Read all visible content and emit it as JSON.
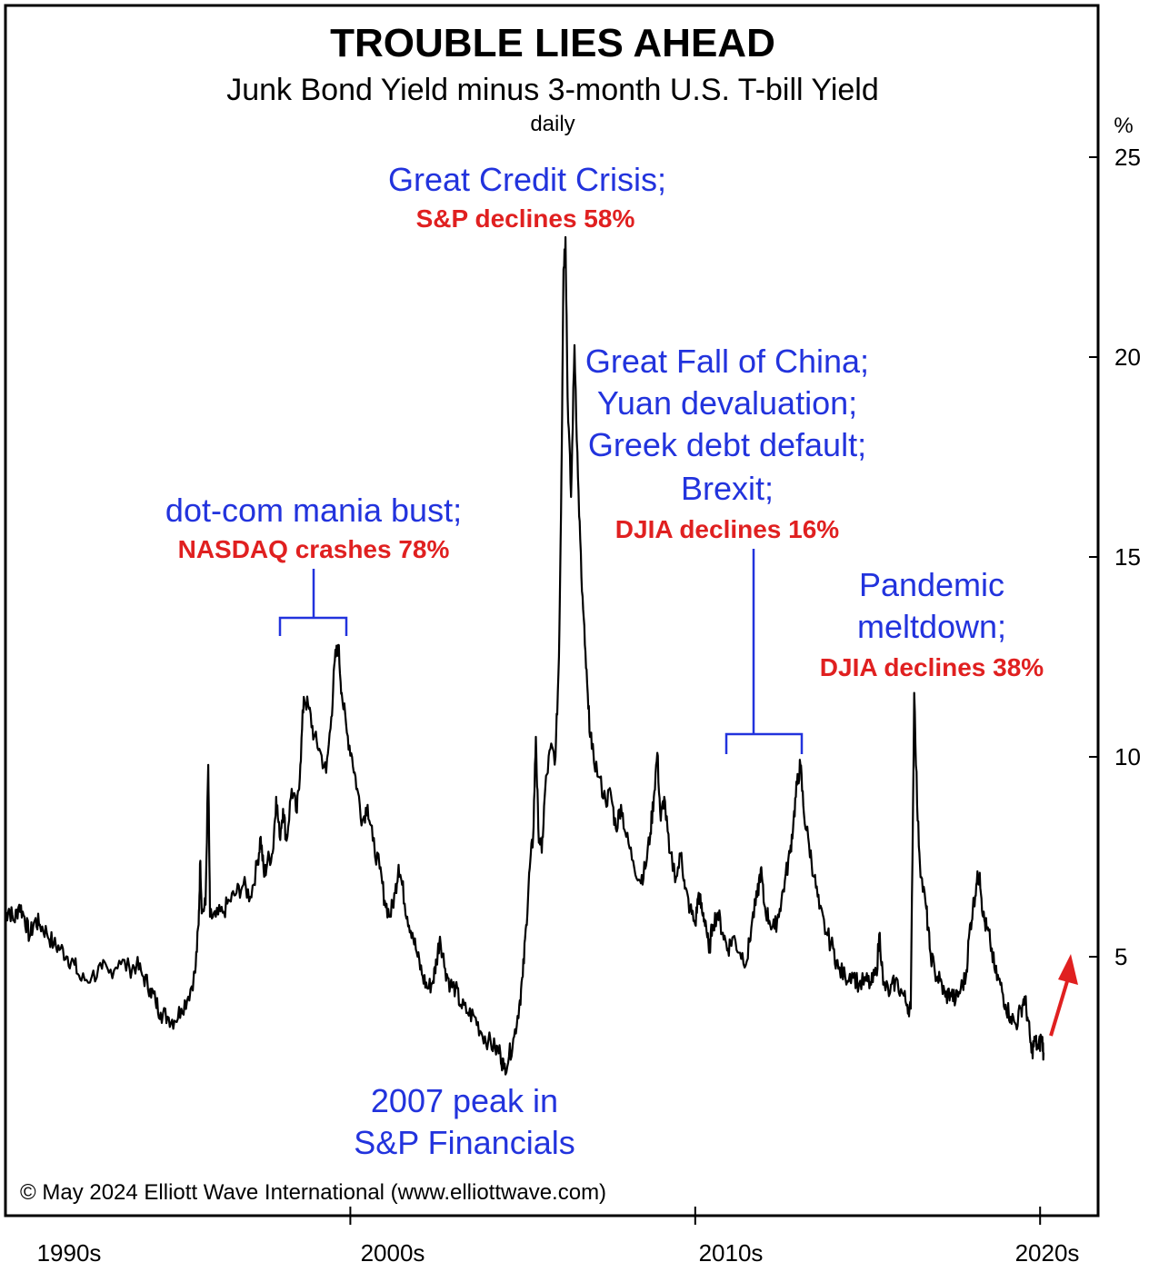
{
  "chart_data": {
    "type": "line",
    "title": "TROUBLE LIES AHEAD",
    "subtitle": "Junk Bond Yield minus 3-month U.S. T-bill Yield",
    "frequency": "daily",
    "ylabel": "%",
    "ylim": [
      0,
      27
    ],
    "yticks": [
      5,
      10,
      15,
      20,
      25
    ],
    "xlim": [
      1990,
      2024.6
    ],
    "xticks": [
      {
        "value": 1990,
        "label": "1990s"
      },
      {
        "value": 2000,
        "label": "2000s"
      },
      {
        "value": 2010,
        "label": "2010s"
      },
      {
        "value": 2020,
        "label": "2020s"
      }
    ],
    "grid": false,
    "series": [
      {
        "color": "#000000",
        "points": [
          [
            1990.0,
            6.0
          ],
          [
            1990.1,
            6.2
          ],
          [
            1990.25,
            5.9
          ],
          [
            1990.4,
            6.3
          ],
          [
            1990.55,
            6.0
          ],
          [
            1990.7,
            5.5
          ],
          [
            1990.85,
            5.9
          ],
          [
            1991.0,
            5.8
          ],
          [
            1991.2,
            5.6
          ],
          [
            1991.4,
            5.3
          ],
          [
            1991.6,
            5.2
          ],
          [
            1991.8,
            5.0
          ],
          [
            1992.0,
            4.8
          ],
          [
            1992.2,
            4.4
          ],
          [
            1992.5,
            4.5
          ],
          [
            1992.8,
            4.7
          ],
          [
            1993.0,
            4.6
          ],
          [
            1993.3,
            4.9
          ],
          [
            1993.6,
            4.7
          ],
          [
            1993.8,
            4.8
          ],
          [
            1994.0,
            4.5
          ],
          [
            1994.2,
            4.2
          ],
          [
            1994.35,
            3.9
          ],
          [
            1994.5,
            3.6
          ],
          [
            1994.7,
            3.5
          ],
          [
            1994.9,
            3.4
          ],
          [
            1995.1,
            3.7
          ],
          [
            1995.3,
            4.0
          ],
          [
            1995.5,
            4.6
          ],
          [
            1995.6,
            5.8
          ],
          [
            1995.65,
            7.4
          ],
          [
            1995.7,
            6.1
          ],
          [
            1995.8,
            6.3
          ],
          [
            1995.88,
            9.8
          ],
          [
            1995.93,
            6.0
          ],
          [
            1996.1,
            6.0
          ],
          [
            1996.3,
            6.1
          ],
          [
            1996.5,
            6.4
          ],
          [
            1996.7,
            6.6
          ],
          [
            1996.9,
            6.8
          ],
          [
            1997.1,
            6.5
          ],
          [
            1997.3,
            7.3
          ],
          [
            1997.4,
            8.0
          ],
          [
            1997.5,
            7.0
          ],
          [
            1997.6,
            7.4
          ],
          [
            1997.75,
            7.6
          ],
          [
            1997.85,
            9.0
          ],
          [
            1997.95,
            8.0
          ],
          [
            1998.05,
            8.7
          ],
          [
            1998.15,
            7.9
          ],
          [
            1998.3,
            9.2
          ],
          [
            1998.45,
            8.6
          ],
          [
            1998.55,
            9.8
          ],
          [
            1998.65,
            11.5
          ],
          [
            1998.8,
            11.2
          ],
          [
            1998.95,
            10.5
          ],
          [
            1999.1,
            10.2
          ],
          [
            1999.3,
            9.6
          ],
          [
            1999.45,
            11.0
          ],
          [
            1999.55,
            12.4
          ],
          [
            1999.65,
            12.8
          ],
          [
            1999.75,
            11.6
          ],
          [
            1999.9,
            10.6
          ],
          [
            2000.05,
            10.0
          ],
          [
            2000.2,
            9.2
          ],
          [
            2000.35,
            8.4
          ],
          [
            2000.5,
            8.8
          ],
          [
            2000.65,
            7.9
          ],
          [
            2000.85,
            7.2
          ],
          [
            2001.0,
            6.4
          ],
          [
            2001.15,
            6.0
          ],
          [
            2001.3,
            6.6
          ],
          [
            2001.4,
            7.3
          ],
          [
            2001.5,
            6.8
          ],
          [
            2001.65,
            6.0
          ],
          [
            2001.8,
            5.6
          ],
          [
            2001.95,
            5.0
          ],
          [
            2002.1,
            4.5
          ],
          [
            2002.25,
            4.2
          ],
          [
            2002.4,
            4.4
          ],
          [
            2002.5,
            4.9
          ],
          [
            2002.6,
            5.5
          ],
          [
            2002.75,
            4.7
          ],
          [
            2002.9,
            4.3
          ],
          [
            2003.05,
            4.2
          ],
          [
            2003.2,
            3.8
          ],
          [
            2003.4,
            3.6
          ],
          [
            2003.6,
            3.5
          ],
          [
            2003.8,
            3.1
          ],
          [
            2004.0,
            2.9
          ],
          [
            2004.2,
            2.7
          ],
          [
            2004.35,
            2.6
          ],
          [
            2004.45,
            2.2
          ],
          [
            2004.6,
            2.5
          ],
          [
            2004.75,
            3.0
          ],
          [
            2004.9,
            3.8
          ],
          [
            2005.0,
            4.5
          ],
          [
            2005.1,
            5.8
          ],
          [
            2005.2,
            7.2
          ],
          [
            2005.3,
            8.0
          ],
          [
            2005.38,
            10.5
          ],
          [
            2005.45,
            8.2
          ],
          [
            2005.55,
            7.6
          ],
          [
            2005.65,
            9.2
          ],
          [
            2005.8,
            10.2
          ],
          [
            2005.95,
            10.0
          ],
          [
            2006.05,
            12.5
          ],
          [
            2006.12,
            17.0
          ],
          [
            2006.18,
            22.2
          ],
          [
            2006.24,
            23.0
          ],
          [
            2006.3,
            19.0
          ],
          [
            2006.4,
            16.5
          ],
          [
            2006.5,
            20.3
          ],
          [
            2006.6,
            17.0
          ],
          [
            2006.7,
            14.5
          ],
          [
            2006.8,
            12.8
          ],
          [
            2006.9,
            11.2
          ],
          [
            2007.0,
            10.2
          ],
          [
            2007.2,
            9.5
          ],
          [
            2007.4,
            8.9
          ],
          [
            2007.55,
            9.1
          ],
          [
            2007.7,
            8.2
          ],
          [
            2007.85,
            8.8
          ],
          [
            2008.0,
            8.0
          ],
          [
            2008.2,
            7.4
          ],
          [
            2008.4,
            6.9
          ],
          [
            2008.55,
            7.2
          ],
          [
            2008.7,
            8.1
          ],
          [
            2008.8,
            9.0
          ],
          [
            2008.9,
            10.1
          ],
          [
            2009.0,
            8.4
          ],
          [
            2009.1,
            9.0
          ],
          [
            2009.25,
            7.6
          ],
          [
            2009.45,
            7.0
          ],
          [
            2009.6,
            7.6
          ],
          [
            2009.7,
            6.7
          ],
          [
            2009.85,
            6.2
          ],
          [
            2010.0,
            5.8
          ],
          [
            2010.1,
            6.6
          ],
          [
            2010.2,
            6.1
          ],
          [
            2010.3,
            5.9
          ],
          [
            2010.4,
            5.1
          ],
          [
            2010.5,
            5.8
          ],
          [
            2010.65,
            6.1
          ],
          [
            2010.8,
            5.6
          ],
          [
            2010.95,
            5.2
          ],
          [
            2011.1,
            5.5
          ],
          [
            2011.3,
            5.1
          ],
          [
            2011.5,
            4.9
          ],
          [
            2011.65,
            5.9
          ],
          [
            2011.8,
            6.5
          ],
          [
            2011.9,
            7.2
          ],
          [
            2012.0,
            6.3
          ],
          [
            2012.15,
            5.9
          ],
          [
            2012.3,
            5.7
          ],
          [
            2012.45,
            6.2
          ],
          [
            2012.6,
            6.9
          ],
          [
            2012.75,
            7.6
          ],
          [
            2012.85,
            8.4
          ],
          [
            2012.95,
            9.3
          ],
          [
            2013.05,
            9.8
          ],
          [
            2013.15,
            8.6
          ],
          [
            2013.3,
            7.8
          ],
          [
            2013.45,
            7.0
          ],
          [
            2013.6,
            6.2
          ],
          [
            2013.8,
            5.6
          ],
          [
            2014.0,
            5.2
          ],
          [
            2014.15,
            4.7
          ],
          [
            2014.35,
            4.5
          ],
          [
            2014.55,
            4.6
          ],
          [
            2014.75,
            4.3
          ],
          [
            2014.95,
            4.4
          ],
          [
            2015.1,
            4.3
          ],
          [
            2015.25,
            4.6
          ],
          [
            2015.35,
            5.6
          ],
          [
            2015.45,
            4.3
          ],
          [
            2015.65,
            4.1
          ],
          [
            2015.8,
            4.4
          ],
          [
            2016.0,
            4.1
          ],
          [
            2016.15,
            3.8
          ],
          [
            2016.25,
            3.7
          ],
          [
            2016.35,
            11.6
          ],
          [
            2016.45,
            8.4
          ],
          [
            2016.55,
            7.0
          ],
          [
            2016.7,
            6.2
          ],
          [
            2016.8,
            5.2
          ],
          [
            2016.95,
            4.6
          ],
          [
            2017.1,
            4.4
          ],
          [
            2017.25,
            4.0
          ],
          [
            2017.4,
            4.1
          ],
          [
            2017.55,
            3.9
          ],
          [
            2017.7,
            4.2
          ],
          [
            2017.85,
            4.5
          ],
          [
            2017.95,
            5.6
          ],
          [
            2018.05,
            6.2
          ],
          [
            2018.15,
            6.8
          ],
          [
            2018.25,
            7.1
          ],
          [
            2018.35,
            6.0
          ],
          [
            2018.45,
            5.7
          ],
          [
            2018.55,
            5.4
          ],
          [
            2018.7,
            4.6
          ],
          [
            2018.85,
            4.3
          ],
          [
            2019.0,
            3.8
          ],
          [
            2019.15,
            3.5
          ],
          [
            2019.3,
            3.3
          ],
          [
            2019.45,
            3.7
          ],
          [
            2019.55,
            4.0
          ],
          [
            2019.65,
            3.4
          ],
          [
            2019.75,
            2.6
          ],
          [
            2019.85,
            2.9
          ],
          [
            2019.95,
            2.7
          ],
          [
            2020.05,
            3.0
          ],
          [
            2020.1,
            2.6
          ]
        ]
      }
    ],
    "annotations": {
      "dotcom": {
        "line1": "dot-com mania bust;",
        "line2": "NASDAQ crashes 78%"
      },
      "credit_crisis": {
        "line1": "Great Credit Crisis;",
        "line2": "S&P declines 58%"
      },
      "china": {
        "line1": "Great Fall of China;",
        "line2": "Yuan devaluation;",
        "line3": "Greek debt default;",
        "line4": "Brexit;",
        "line5": "DJIA declines 16%"
      },
      "pandemic": {
        "line1": "Pandemic",
        "line2": "meltdown;",
        "line3": "DJIA declines 38%"
      },
      "peak2007": {
        "line1": "2007 peak in",
        "line2": "S&P Financials"
      }
    },
    "colors": {
      "annotation": "#2233dd",
      "decline": "#e02020",
      "line": "#000000"
    }
  },
  "copyright": "© May 2024 Elliott Wave International (www.elliottwave.com)"
}
